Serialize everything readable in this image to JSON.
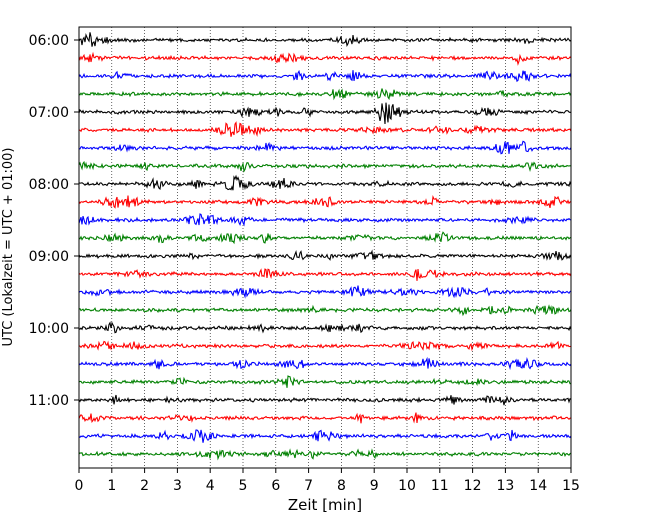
{
  "chart_data": {
    "type": "line",
    "title": "",
    "xlabel": "Zeit  [min]",
    "ylabel": "UTC (Lokalzeit = UTC + 01:00)",
    "xlim": [
      0,
      15
    ],
    "x_ticks": [
      0,
      1,
      2,
      3,
      4,
      5,
      6,
      7,
      8,
      9,
      10,
      11,
      12,
      13,
      14,
      15
    ],
    "grid": "vertical dotted",
    "legend": "none",
    "trace_interval_minutes": 15,
    "y_tick_labels": [
      "06:00",
      "07:00",
      "08:00",
      "09:00",
      "10:00",
      "11:00"
    ],
    "trace_colors": [
      "#000000",
      "#ff0000",
      "#0000ff",
      "#008000"
    ],
    "series": [
      {
        "start": "06:00",
        "color": "#000000"
      },
      {
        "start": "06:15",
        "color": "#ff0000"
      },
      {
        "start": "06:30",
        "color": "#0000ff"
      },
      {
        "start": "06:45",
        "color": "#008000"
      },
      {
        "start": "07:00",
        "color": "#000000"
      },
      {
        "start": "07:15",
        "color": "#ff0000"
      },
      {
        "start": "07:30",
        "color": "#0000ff"
      },
      {
        "start": "07:45",
        "color": "#008000"
      },
      {
        "start": "08:00",
        "color": "#000000"
      },
      {
        "start": "08:15",
        "color": "#ff0000"
      },
      {
        "start": "08:30",
        "color": "#0000ff"
      },
      {
        "start": "08:45",
        "color": "#008000"
      },
      {
        "start": "09:00",
        "color": "#000000"
      },
      {
        "start": "09:15",
        "color": "#ff0000"
      },
      {
        "start": "09:30",
        "color": "#0000ff"
      },
      {
        "start": "09:45",
        "color": "#008000"
      },
      {
        "start": "10:00",
        "color": "#000000"
      },
      {
        "start": "10:15",
        "color": "#ff0000"
      },
      {
        "start": "10:30",
        "color": "#0000ff"
      },
      {
        "start": "10:45",
        "color": "#008000"
      },
      {
        "start": "11:00",
        "color": "#000000"
      },
      {
        "start": "11:15",
        "color": "#ff0000"
      },
      {
        "start": "11:30",
        "color": "#0000ff"
      },
      {
        "start": "11:45",
        "color": "#008000"
      }
    ]
  }
}
